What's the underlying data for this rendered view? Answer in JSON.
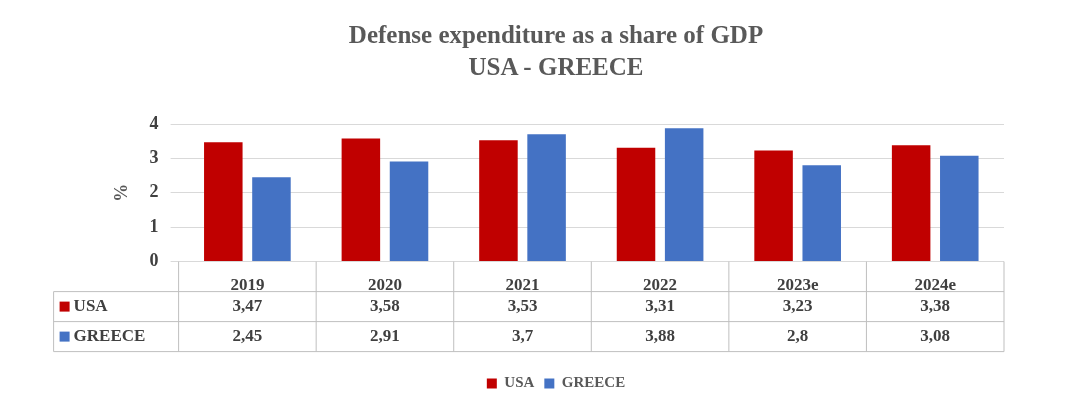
{
  "chart_data": {
    "type": "bar",
    "title": "Defense expenditure as a share of GDP",
    "subtitle": "USA - GREECE",
    "ylabel": "%",
    "categories": [
      "2019",
      "2020",
      "2021",
      "2022",
      "2023e",
      "2024e"
    ],
    "series": [
      {
        "name": "USA",
        "color": "#c00000",
        "values": [
          3.47,
          3.58,
          3.53,
          3.31,
          3.23,
          3.38
        ],
        "value_labels": [
          "3,47",
          "3,58",
          "3,53",
          "3,31",
          "3,23",
          "3,38"
        ]
      },
      {
        "name": "GREECE",
        "color": "#4472c4",
        "values": [
          2.45,
          2.91,
          3.7,
          3.88,
          2.8,
          3.08
        ],
        "value_labels": [
          "2,45",
          "2,91",
          "3,7",
          "3,88",
          "2,8",
          "3,08"
        ]
      }
    ],
    "ylim": [
      0,
      4
    ],
    "yticks": [
      0,
      1,
      2,
      3,
      4
    ],
    "grid": "y",
    "legend": "bottom"
  }
}
